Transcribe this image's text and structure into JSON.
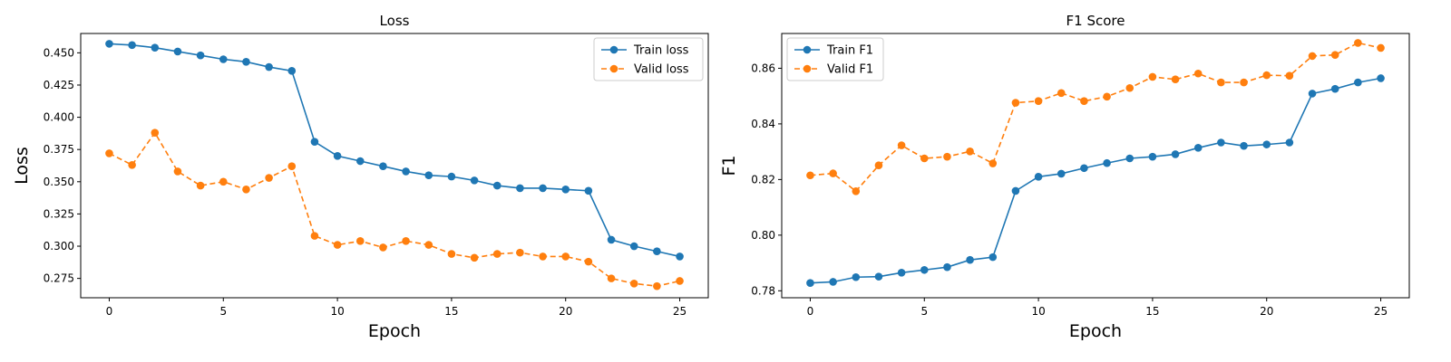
{
  "chart_data": [
    {
      "type": "line",
      "title": "Loss",
      "xlabel": "Epoch",
      "ylabel": "Loss",
      "xlim": [
        -1.25,
        26.25
      ],
      "ylim": [
        0.26,
        0.465
      ],
      "xticks": [
        0,
        5,
        10,
        15,
        20,
        25
      ],
      "yticks": [
        0.275,
        0.3,
        0.325,
        0.35,
        0.375,
        0.4,
        0.425,
        0.45
      ],
      "ytick_labels": [
        "0.275",
        "0.300",
        "0.325",
        "0.350",
        "0.375",
        "0.400",
        "0.425",
        "0.450"
      ],
      "legend_position": "upper right",
      "x": [
        0,
        1,
        2,
        3,
        4,
        5,
        6,
        7,
        8,
        9,
        10,
        11,
        12,
        13,
        14,
        15,
        16,
        17,
        18,
        19,
        20,
        21,
        22,
        23,
        24,
        25
      ],
      "series": [
        {
          "name": "Train loss",
          "color": "#1f77b4",
          "dashed": false,
          "values": [
            0.457,
            0.456,
            0.454,
            0.451,
            0.448,
            0.445,
            0.443,
            0.439,
            0.436,
            0.381,
            0.37,
            0.366,
            0.362,
            0.358,
            0.355,
            0.354,
            0.351,
            0.347,
            0.345,
            0.345,
            0.344,
            0.343,
            0.305,
            0.3,
            0.296,
            0.292
          ]
        },
        {
          "name": "Valid loss",
          "color": "#ff7f0e",
          "dashed": true,
          "values": [
            0.372,
            0.363,
            0.388,
            0.358,
            0.347,
            0.35,
            0.344,
            0.353,
            0.362,
            0.308,
            0.301,
            0.304,
            0.299,
            0.304,
            0.301,
            0.294,
            0.291,
            0.294,
            0.295,
            0.292,
            0.292,
            0.288,
            0.275,
            0.271,
            0.269,
            0.273
          ]
        }
      ]
    },
    {
      "type": "line",
      "title": "F1 Score",
      "xlabel": "Epoch",
      "ylabel": "F1",
      "xlim": [
        -1.25,
        26.25
      ],
      "ylim": [
        0.7775,
        0.8725
      ],
      "xticks": [
        0,
        5,
        10,
        15,
        20,
        25
      ],
      "yticks": [
        0.78,
        0.8,
        0.82,
        0.84,
        0.86
      ],
      "ytick_labels": [
        "0.78",
        "0.80",
        "0.82",
        "0.84",
        "0.86"
      ],
      "legend_position": "upper left",
      "x": [
        0,
        1,
        2,
        3,
        4,
        5,
        6,
        7,
        8,
        9,
        10,
        11,
        12,
        13,
        14,
        15,
        16,
        17,
        18,
        19,
        20,
        21,
        22,
        23,
        24,
        25
      ],
      "series": [
        {
          "name": "Train F1",
          "color": "#1f77b4",
          "dashed": false,
          "values": [
            0.7828,
            0.7832,
            0.7849,
            0.7851,
            0.7865,
            0.7875,
            0.7885,
            0.7911,
            0.7921,
            0.8159,
            0.821,
            0.8221,
            0.8241,
            0.8259,
            0.8276,
            0.8282,
            0.8291,
            0.8314,
            0.8333,
            0.8321,
            0.8326,
            0.8333,
            0.8509,
            0.8526,
            0.8549,
            0.8564
          ]
        },
        {
          "name": "Valid F1",
          "color": "#ff7f0e",
          "dashed": true,
          "values": [
            0.8215,
            0.8222,
            0.8158,
            0.8251,
            0.8323,
            0.8276,
            0.8282,
            0.8301,
            0.8258,
            0.8476,
            0.8482,
            0.8511,
            0.8482,
            0.8498,
            0.8529,
            0.8569,
            0.856,
            0.8581,
            0.8549,
            0.8549,
            0.8575,
            0.8573,
            0.8644,
            0.8648,
            0.8691,
            0.8673
          ]
        }
      ]
    }
  ]
}
